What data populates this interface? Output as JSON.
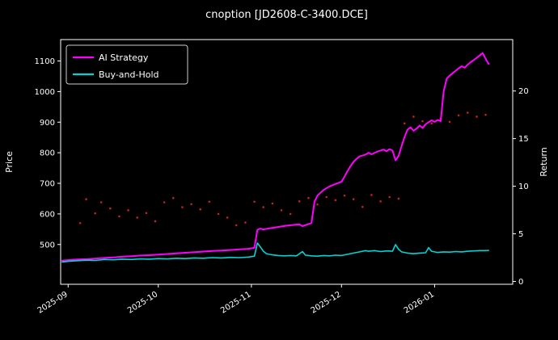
{
  "window": {
    "background": "#000000"
  },
  "chart_data": {
    "type": "line",
    "title": "cnoption [JD2608-C-3400.DCE]",
    "xlabel": "",
    "ylabel_left": "Price",
    "ylabel_right": "Return",
    "x_tick_labels": [
      "2025-09",
      "2025-10",
      "2025-11",
      "2025-12",
      "2026-01"
    ],
    "x_tick_days": [
      0,
      30,
      61,
      91,
      122
    ],
    "x_domain_days": [
      -2.5,
      148
    ],
    "ylim_left": [
      370,
      1170
    ],
    "yticks_left": [
      500,
      600,
      700,
      800,
      900,
      1000,
      1100
    ],
    "ylim_right": [
      -0.3,
      25.4
    ],
    "yticks_right": [
      0,
      5,
      10,
      15,
      20
    ],
    "grid": false,
    "legend": {
      "position": "upper-left",
      "entries": [
        {
          "label": "AI Strategy",
          "color": "#ff00ff"
        },
        {
          "label": "Buy-and-Hold",
          "color": "#00d4d4"
        }
      ]
    },
    "series": [
      {
        "name": "AI Strategy",
        "color": "#ff00ff",
        "width": 2,
        "points": [
          [
            -2,
            447
          ],
          [
            0,
            449
          ],
          [
            3,
            451
          ],
          [
            6,
            452
          ],
          [
            9,
            454
          ],
          [
            12,
            456
          ],
          [
            15,
            458
          ],
          [
            18,
            460
          ],
          [
            21,
            462
          ],
          [
            24,
            464
          ],
          [
            27,
            465
          ],
          [
            30,
            467
          ],
          [
            33,
            469
          ],
          [
            36,
            471
          ],
          [
            39,
            473
          ],
          [
            42,
            475
          ],
          [
            45,
            477
          ],
          [
            48,
            479
          ],
          [
            51,
            480
          ],
          [
            54,
            482
          ],
          [
            57,
            484
          ],
          [
            60,
            486
          ],
          [
            62,
            489
          ],
          [
            63,
            548
          ],
          [
            64,
            552
          ],
          [
            65,
            549
          ],
          [
            67,
            553
          ],
          [
            69,
            556
          ],
          [
            71,
            559
          ],
          [
            73,
            562
          ],
          [
            75,
            564
          ],
          [
            77,
            566
          ],
          [
            78,
            560
          ],
          [
            80,
            567
          ],
          [
            81,
            570
          ],
          [
            82,
            640
          ],
          [
            83,
            660
          ],
          [
            85,
            678
          ],
          [
            87,
            690
          ],
          [
            89,
            698
          ],
          [
            91,
            705
          ],
          [
            92,
            722
          ],
          [
            93,
            740
          ],
          [
            94,
            756
          ],
          [
            95,
            770
          ],
          [
            96,
            780
          ],
          [
            97,
            788
          ],
          [
            99,
            794
          ],
          [
            100,
            800
          ],
          [
            101,
            795
          ],
          [
            103,
            804
          ],
          [
            105,
            810
          ],
          [
            106,
            805
          ],
          [
            107,
            812
          ],
          [
            108,
            807
          ],
          [
            109,
            775
          ],
          [
            110,
            790
          ],
          [
            111,
            822
          ],
          [
            112,
            852
          ],
          [
            113,
            876
          ],
          [
            114,
            883
          ],
          [
            115,
            872
          ],
          [
            116,
            879
          ],
          [
            117,
            889
          ],
          [
            118,
            881
          ],
          [
            119,
            893
          ],
          [
            120,
            900
          ],
          [
            121,
            906
          ],
          [
            122,
            901
          ],
          [
            123,
            907
          ],
          [
            124,
            903
          ],
          [
            125,
            1000
          ],
          [
            126,
            1042
          ],
          [
            127,
            1052
          ],
          [
            128,
            1060
          ],
          [
            129,
            1068
          ],
          [
            130,
            1076
          ],
          [
            131,
            1083
          ],
          [
            132,
            1078
          ],
          [
            133,
            1088
          ],
          [
            134,
            1096
          ],
          [
            135,
            1103
          ],
          [
            136,
            1110
          ],
          [
            137,
            1118
          ],
          [
            138,
            1126
          ],
          [
            139,
            1107
          ],
          [
            140,
            1090
          ]
        ]
      },
      {
        "name": "Buy-and-Hold",
        "color": "#00d4d4",
        "width": 1.6,
        "points": [
          [
            -2,
            443
          ],
          [
            0,
            445
          ],
          [
            3,
            447
          ],
          [
            6,
            449
          ],
          [
            9,
            448
          ],
          [
            12,
            451
          ],
          [
            15,
            450
          ],
          [
            18,
            452
          ],
          [
            21,
            451
          ],
          [
            24,
            453
          ],
          [
            27,
            452
          ],
          [
            30,
            454
          ],
          [
            33,
            453
          ],
          [
            36,
            455
          ],
          [
            39,
            454
          ],
          [
            42,
            456
          ],
          [
            45,
            455
          ],
          [
            48,
            457
          ],
          [
            51,
            456
          ],
          [
            54,
            458
          ],
          [
            57,
            457
          ],
          [
            60,
            459
          ],
          [
            62,
            462
          ],
          [
            63,
            505
          ],
          [
            64,
            492
          ],
          [
            65,
            478
          ],
          [
            66,
            470
          ],
          [
            68,
            466
          ],
          [
            70,
            464
          ],
          [
            72,
            463
          ],
          [
            74,
            464
          ],
          [
            76,
            463
          ],
          [
            78,
            477
          ],
          [
            79,
            465
          ],
          [
            81,
            463
          ],
          [
            83,
            462
          ],
          [
            85,
            464
          ],
          [
            87,
            463
          ],
          [
            89,
            465
          ],
          [
            91,
            464
          ],
          [
            93,
            468
          ],
          [
            95,
            472
          ],
          [
            97,
            476
          ],
          [
            99,
            480
          ],
          [
            100,
            478
          ],
          [
            102,
            480
          ],
          [
            104,
            477
          ],
          [
            106,
            479
          ],
          [
            108,
            478
          ],
          [
            109,
            500
          ],
          [
            110,
            484
          ],
          [
            111,
            476
          ],
          [
            113,
            472
          ],
          [
            115,
            470
          ],
          [
            117,
            472
          ],
          [
            119,
            473
          ],
          [
            120,
            490
          ],
          [
            121,
            478
          ],
          [
            123,
            474
          ],
          [
            125,
            476
          ],
          [
            127,
            475
          ],
          [
            129,
            477
          ],
          [
            131,
            476
          ],
          [
            133,
            478
          ],
          [
            135,
            479
          ],
          [
            137,
            480
          ],
          [
            139,
            480
          ],
          [
            140,
            481
          ]
        ]
      }
    ],
    "scatter": {
      "name": "price-dots",
      "color": "#e62929",
      "radius": 1.3,
      "opacity": 0.85,
      "points": [
        [
          4,
          570
        ],
        [
          6,
          648
        ],
        [
          9,
          602
        ],
        [
          11,
          638
        ],
        [
          14,
          618
        ],
        [
          17,
          592
        ],
        [
          20,
          612
        ],
        [
          23,
          588
        ],
        [
          26,
          603
        ],
        [
          29,
          576
        ],
        [
          32,
          638
        ],
        [
          35,
          652
        ],
        [
          38,
          622
        ],
        [
          41,
          632
        ],
        [
          44,
          615
        ],
        [
          47,
          640
        ],
        [
          50,
          600
        ],
        [
          53,
          588
        ],
        [
          56,
          563
        ],
        [
          59,
          572
        ],
        [
          62,
          640
        ],
        [
          65,
          622
        ],
        [
          68,
          634
        ],
        [
          71,
          612
        ],
        [
          74,
          600
        ],
        [
          77,
          641
        ],
        [
          80,
          652
        ],
        [
          83,
          631
        ],
        [
          86,
          655
        ],
        [
          89,
          645
        ],
        [
          92,
          660
        ],
        [
          95,
          648
        ],
        [
          98,
          623
        ],
        [
          101,
          662
        ],
        [
          104,
          641
        ],
        [
          107,
          655
        ],
        [
          110,
          650
        ],
        [
          112,
          896
        ],
        [
          115,
          918
        ],
        [
          118,
          903
        ],
        [
          121,
          896
        ],
        [
          124,
          912
        ],
        [
          127,
          901
        ],
        [
          130,
          922
        ],
        [
          133,
          931
        ],
        [
          136,
          918
        ],
        [
          139,
          924
        ]
      ]
    },
    "colors": {
      "background": "#000000",
      "spine": "#ffffff",
      "tick_label": "#ffffff",
      "title": "#ffffff",
      "legend_border": "#cccccc",
      "legend_background": "#000000"
    }
  }
}
